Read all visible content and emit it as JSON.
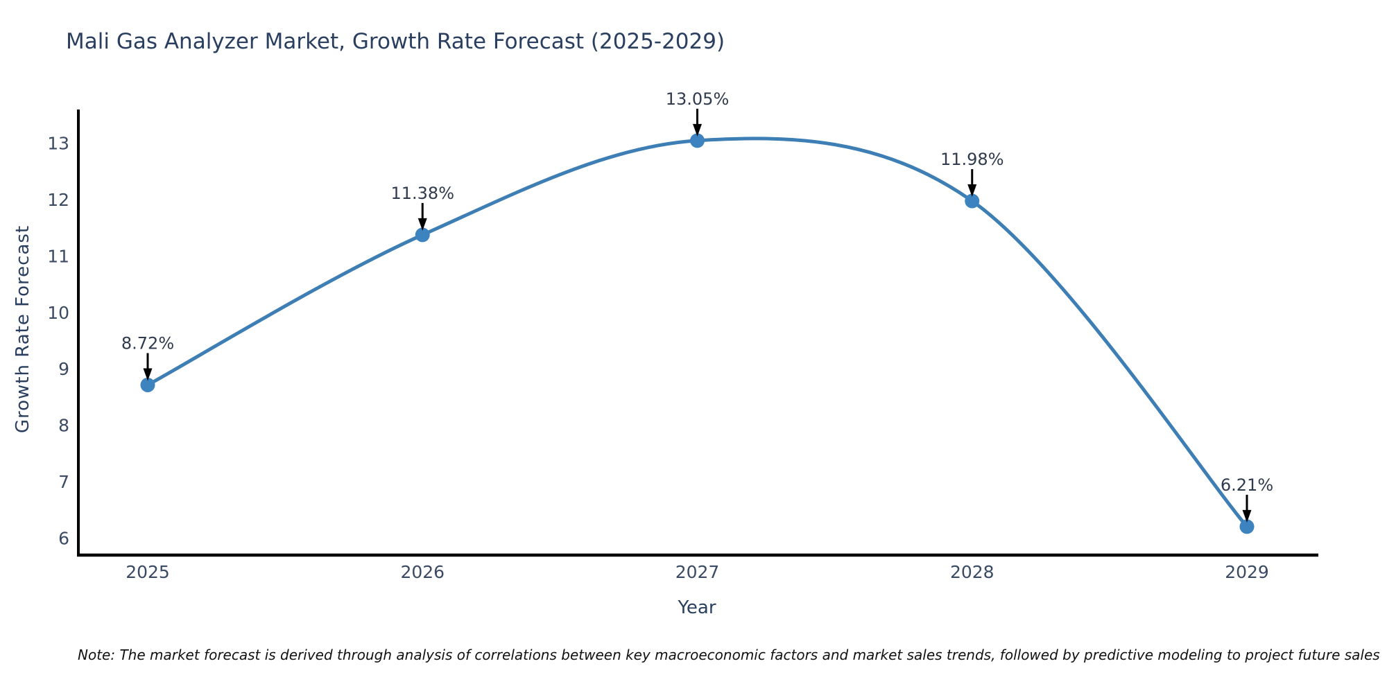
{
  "title": "Mali Gas Analyzer Market, Growth Rate Forecast (2025-2029)",
  "footnote": "Note: The market forecast is derived through analysis of correlations between key macroeconomic factors and market sales trends, followed by predictive modeling to project future sales",
  "chart_data": {
    "type": "line",
    "title": "Mali Gas Analyzer Market, Growth Rate Forecast (2025-2029)",
    "xlabel": "Year",
    "ylabel": "Growth Rate Forecast",
    "categories": [
      "2025",
      "2026",
      "2027",
      "2028",
      "2029"
    ],
    "values": [
      8.72,
      11.38,
      13.05,
      11.98,
      6.21
    ],
    "point_labels": [
      "8.72%",
      "11.38%",
      "13.05%",
      "11.98%",
      "6.21%"
    ],
    "yticks": [
      6,
      7,
      8,
      9,
      10,
      11,
      12,
      13
    ],
    "ylim": [
      5.72,
      13.6
    ],
    "grid": false,
    "legend": "none",
    "smooth_curve": true,
    "colors": {
      "line": "#3d7eb5",
      "marker": "#3c83c0",
      "axis": "#000000",
      "tick_label": "#3b4a63",
      "annotation_text": "#2f3a4d",
      "annotation_arrow": "#000000",
      "title_text": "#2a3f5f"
    }
  }
}
